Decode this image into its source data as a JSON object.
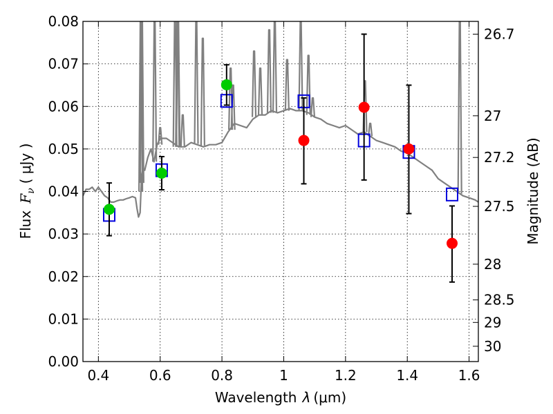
{
  "chart_data": {
    "type": "scatter",
    "xlabel_text": "Wavelength",
    "xlabel_symbol": "λ",
    "xlabel_unit": "(μm)",
    "ylabel_text": "Flux",
    "ylabel_symbol": "F",
    "ylabel_subscript": "ν",
    "ylabel_unit": "( μJy )",
    "y2label": "Magnitude (AB)",
    "xlim": [
      0.35,
      1.63
    ],
    "ylim": [
      0.0,
      0.08
    ],
    "grid": true,
    "x_ticks": [
      {
        "value": 0.4,
        "label": "0.4"
      },
      {
        "value": 0.6,
        "label": "0.6"
      },
      {
        "value": 0.8,
        "label": "0.8"
      },
      {
        "value": 1.0,
        "label": "1"
      },
      {
        "value": 1.2,
        "label": "1.2"
      },
      {
        "value": 1.4,
        "label": "1.4"
      },
      {
        "value": 1.6,
        "label": "1.6"
      }
    ],
    "y_ticks": [
      {
        "value": 0.0,
        "label": "0.00"
      },
      {
        "value": 0.01,
        "label": "0.01"
      },
      {
        "value": 0.02,
        "label": "0.02"
      },
      {
        "value": 0.03,
        "label": "0.03"
      },
      {
        "value": 0.04,
        "label": "0.04"
      },
      {
        "value": 0.05,
        "label": "0.05"
      },
      {
        "value": 0.06,
        "label": "0.06"
      },
      {
        "value": 0.07,
        "label": "0.07"
      },
      {
        "value": 0.08,
        "label": "0.08"
      }
    ],
    "y2_ticks": [
      {
        "label": "26.7",
        "flux": 0.077
      },
      {
        "label": "27",
        "flux": 0.0578
      },
      {
        "label": "27.2",
        "flux": 0.048
      },
      {
        "label": "27.5",
        "flux": 0.0365
      },
      {
        "label": "28",
        "flux": 0.0229
      },
      {
        "label": "28.5",
        "flux": 0.0145
      },
      {
        "label": "29",
        "flux": 0.0092
      },
      {
        "label": "30",
        "flux": 0.0036
      }
    ],
    "series": [
      {
        "kind": "line",
        "color": "#808080",
        "x": [
          0.35,
          0.36,
          0.37,
          0.38,
          0.39,
          0.4,
          0.41,
          0.42,
          0.43,
          0.44,
          0.45,
          0.46,
          0.47,
          0.48,
          0.49,
          0.5,
          0.51,
          0.52,
          0.525,
          0.53,
          0.535,
          0.54,
          0.545,
          0.55,
          0.56,
          0.57,
          0.58,
          0.59,
          0.6,
          0.62,
          0.64,
          0.66,
          0.68,
          0.7,
          0.72,
          0.74,
          0.76,
          0.78,
          0.8,
          0.82,
          0.84,
          0.86,
          0.88,
          0.9,
          0.92,
          0.94,
          0.96,
          0.98,
          1.0,
          1.02,
          1.04,
          1.06,
          1.08,
          1.1,
          1.12,
          1.14,
          1.16,
          1.18,
          1.2,
          1.22,
          1.24,
          1.26,
          1.28,
          1.3,
          1.32,
          1.34,
          1.36,
          1.38,
          1.4,
          1.42,
          1.44,
          1.46,
          1.48,
          1.5,
          1.52,
          1.54,
          1.56,
          1.58,
          1.6,
          1.62,
          1.63
        ],
        "y": [
          0.039,
          0.0405,
          0.0405,
          0.041,
          0.04,
          0.041,
          0.04,
          0.039,
          0.0385,
          0.0375,
          0.0375,
          0.0378,
          0.038,
          0.038,
          0.0383,
          0.0385,
          0.0388,
          0.0385,
          0.036,
          0.034,
          0.035,
          0.044,
          0.0455,
          0.045,
          0.048,
          0.05,
          0.047,
          0.051,
          0.0525,
          0.0525,
          0.0515,
          0.0505,
          0.0505,
          0.0515,
          0.051,
          0.0505,
          0.051,
          0.051,
          0.0515,
          0.054,
          0.056,
          0.0555,
          0.055,
          0.057,
          0.058,
          0.058,
          0.059,
          0.0585,
          0.059,
          0.0595,
          0.059,
          0.059,
          0.0585,
          0.0575,
          0.057,
          0.056,
          0.0555,
          0.055,
          0.0555,
          0.0545,
          0.0535,
          0.054,
          0.053,
          0.052,
          0.0515,
          0.051,
          0.0505,
          0.0495,
          0.049,
          0.048,
          0.047,
          0.046,
          0.045,
          0.043,
          0.042,
          0.041,
          0.04,
          0.039,
          0.0385,
          0.038,
          0.0375
        ]
      },
      {
        "kind": "spikes",
        "color": "#808080",
        "x": [
          0.537,
          0.541,
          0.582,
          0.6,
          0.648,
          0.656,
          0.658,
          0.673,
          0.717,
          0.738,
          0.828,
          0.836,
          0.904,
          0.924,
          0.953,
          0.971,
          1.011,
          1.055,
          1.08,
          1.094,
          1.263,
          1.28,
          1.57
        ],
        "base": [
          0.04,
          0.042,
          0.047,
          0.051,
          0.0505,
          0.0505,
          0.0505,
          0.0505,
          0.0512,
          0.0508,
          0.0545,
          0.0545,
          0.0575,
          0.058,
          0.0585,
          0.0585,
          0.059,
          0.059,
          0.058,
          0.0575,
          0.054,
          0.053,
          0.0395
        ],
        "peak": [
          0.08,
          0.08,
          0.08,
          0.055,
          0.08,
          0.08,
          0.08,
          0.058,
          0.08,
          0.076,
          0.069,
          0.065,
          0.073,
          0.069,
          0.078,
          0.08,
          0.071,
          0.08,
          0.072,
          0.062,
          0.066,
          0.056,
          0.08
        ]
      },
      {
        "kind": "boxes",
        "color": "#0000dd",
        "x": [
          0.435,
          0.605,
          0.815,
          1.065,
          1.26,
          1.405,
          1.545
        ],
        "y": [
          0.0345,
          0.045,
          0.0613,
          0.0612,
          0.052,
          0.0493,
          0.0393
        ]
      },
      {
        "kind": "errorbar",
        "color": "#000000",
        "x": [
          0.435,
          0.605,
          0.815,
          1.065,
          1.26,
          1.405,
          1.545
        ],
        "y": [
          0.0358,
          0.0443,
          0.0651,
          0.052,
          0.0598,
          0.05,
          0.0278
        ],
        "yerr_low": [
          0.0296,
          0.0404,
          0.0603,
          0.0418,
          0.0427,
          0.0348,
          0.0187
        ],
        "yerr_high": [
          0.042,
          0.0482,
          0.0698,
          0.062,
          0.077,
          0.065,
          0.0366
        ]
      },
      {
        "kind": "points",
        "color": "#00cc00",
        "x": [
          0.435,
          0.605,
          0.815
        ],
        "y": [
          0.0358,
          0.0443,
          0.0651
        ]
      },
      {
        "kind": "points",
        "color": "#ff0000",
        "x": [
          1.065,
          1.26,
          1.405,
          1.545
        ],
        "y": [
          0.052,
          0.0598,
          0.05,
          0.0278
        ]
      }
    ]
  }
}
